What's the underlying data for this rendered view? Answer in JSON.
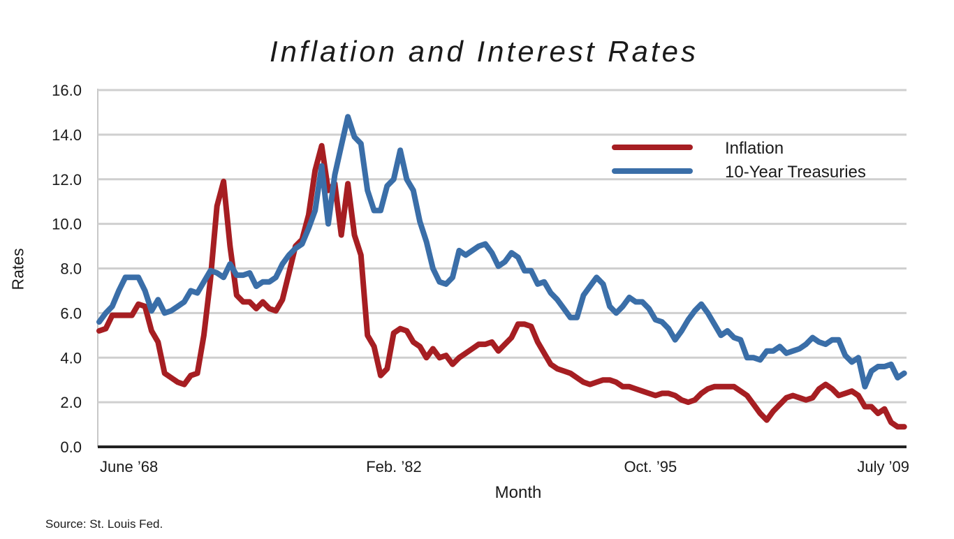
{
  "chart_data": {
    "type": "line",
    "title": "Inflation and Interest Rates",
    "xlabel": "Month",
    "ylabel": "Rates",
    "source": "Source: St. Louis Fed.",
    "x_start": "June 1968",
    "x_step_months": 4,
    "x_range_months": [
      0,
      493
    ],
    "ylim": [
      0,
      16
    ],
    "yticks": [
      0,
      2,
      4,
      6,
      8,
      10,
      12,
      14,
      16
    ],
    "ytick_labels": [
      "0.0",
      "2.0",
      "4.0",
      "6.0",
      "8.0",
      "10.0",
      "12.0",
      "14.0",
      "16.0"
    ],
    "xticks": [
      {
        "month": 0,
        "label": "June ’68"
      },
      {
        "month": 164,
        "label": "Feb. ’82"
      },
      {
        "month": 328,
        "label": "Oct. ’95"
      },
      {
        "month": 493,
        "label": "July ’09"
      }
    ],
    "grid": true,
    "legend_position": "top-right",
    "series": [
      {
        "name": "Inflation",
        "color": "#a61e22",
        "values": [
          5.2,
          5.3,
          5.9,
          5.9,
          5.9,
          5.9,
          6.4,
          6.3,
          5.2,
          4.7,
          3.3,
          3.1,
          2.9,
          2.8,
          3.2,
          3.3,
          5.0,
          7.5,
          10.8,
          11.9,
          9.0,
          6.8,
          6.5,
          6.5,
          6.2,
          6.5,
          6.2,
          6.1,
          6.6,
          7.8,
          9.0,
          9.3,
          10.4,
          12.4,
          13.5,
          11.5,
          11.8,
          9.5,
          11.8,
          9.5,
          8.6,
          5.0,
          4.5,
          3.2,
          3.5,
          5.1,
          5.3,
          5.2,
          4.7,
          4.5,
          4.0,
          4.4,
          4.0,
          4.1,
          3.7,
          4.0,
          4.2,
          4.4,
          4.6,
          4.6,
          4.7,
          4.3,
          4.6,
          4.9,
          5.5,
          5.5,
          5.4,
          4.7,
          4.2,
          3.7,
          3.5,
          3.4,
          3.3,
          3.1,
          2.9,
          2.8,
          2.9,
          3.0,
          3.0,
          2.9,
          2.7,
          2.7,
          2.6,
          2.5,
          2.4,
          2.3,
          2.4,
          2.4,
          2.3,
          2.1,
          2.0,
          2.1,
          2.4,
          2.6,
          2.7,
          2.7,
          2.7,
          2.7,
          2.5,
          2.3,
          1.9,
          1.5,
          1.2,
          1.6,
          1.9,
          2.2,
          2.3,
          2.2,
          2.1,
          2.2,
          2.6,
          2.8,
          2.6,
          2.3,
          2.4,
          2.5,
          2.3,
          1.8,
          1.8,
          1.5,
          1.7,
          1.1,
          0.9,
          0.9
        ]
      },
      {
        "name": "10-Year Treasuries",
        "color": "#3a6ea8",
        "values": [
          5.6,
          6.0,
          6.3,
          7.0,
          7.6,
          7.6,
          7.6,
          7.0,
          6.1,
          6.6,
          6.0,
          6.1,
          6.3,
          6.5,
          7.0,
          6.9,
          7.4,
          7.9,
          7.8,
          7.6,
          8.2,
          7.7,
          7.7,
          7.8,
          7.2,
          7.4,
          7.4,
          7.6,
          8.2,
          8.6,
          8.9,
          9.1,
          9.8,
          10.6,
          12.6,
          10.0,
          12.2,
          13.5,
          14.8,
          13.9,
          13.6,
          11.5,
          10.6,
          10.6,
          11.7,
          12.0,
          13.3,
          12.0,
          11.5,
          10.1,
          9.2,
          8.0,
          7.4,
          7.3,
          7.6,
          8.8,
          8.6,
          8.8,
          9.0,
          9.1,
          8.7,
          8.1,
          8.3,
          8.7,
          8.5,
          7.9,
          7.9,
          7.3,
          7.4,
          6.9,
          6.6,
          6.2,
          5.8,
          5.8,
          6.8,
          7.2,
          7.6,
          7.3,
          6.3,
          6.0,
          6.3,
          6.7,
          6.5,
          6.5,
          6.2,
          5.7,
          5.6,
          5.3,
          4.8,
          5.2,
          5.7,
          6.1,
          6.4,
          6.0,
          5.5,
          5.0,
          5.2,
          4.9,
          4.8,
          4.0,
          4.0,
          3.9,
          4.3,
          4.3,
          4.5,
          4.2,
          4.3,
          4.4,
          4.6,
          4.9,
          4.7,
          4.6,
          4.8,
          4.8,
          4.1,
          3.8,
          4.0,
          2.7,
          3.4,
          3.6,
          3.6,
          3.7,
          3.1,
          3.3
        ]
      }
    ]
  }
}
